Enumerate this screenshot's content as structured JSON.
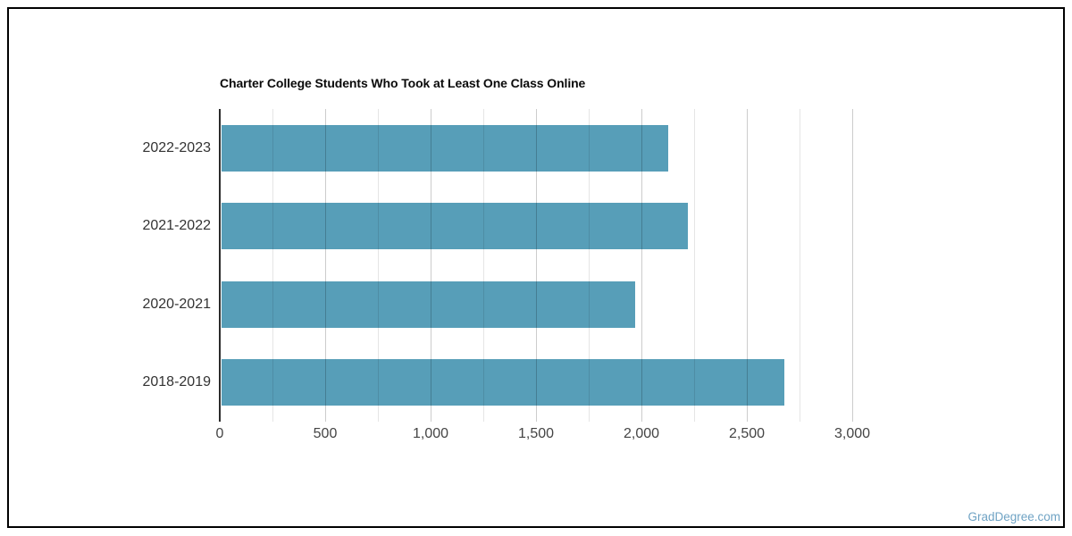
{
  "chart_data": {
    "type": "bar",
    "orientation": "horizontal",
    "title": "Charter College Students Who Took at Least One Class Online",
    "categories": [
      "2022-2023",
      "2021-2022",
      "2020-2021",
      "2018-2019"
    ],
    "values": [
      2120,
      2210,
      1960,
      2670
    ],
    "xlabel": "",
    "ylabel": "",
    "xlim": [
      0,
      3250
    ],
    "x_tick_values": [
      0,
      500,
      1000,
      1500,
      2000,
      2500,
      3000
    ],
    "x_tick_labels": [
      "0",
      "500",
      "1,000",
      "1,500",
      "2,000",
      "2,500",
      "3,000"
    ],
    "minor_gridline_step": 250,
    "grid": true,
    "legend": false,
    "bar_color": "#579eb8"
  },
  "watermark": {
    "text": "GradDegree.com",
    "color": "#6fa3c4"
  },
  "frame": {
    "border_color": "#000000",
    "background_color": "#ffffff"
  }
}
